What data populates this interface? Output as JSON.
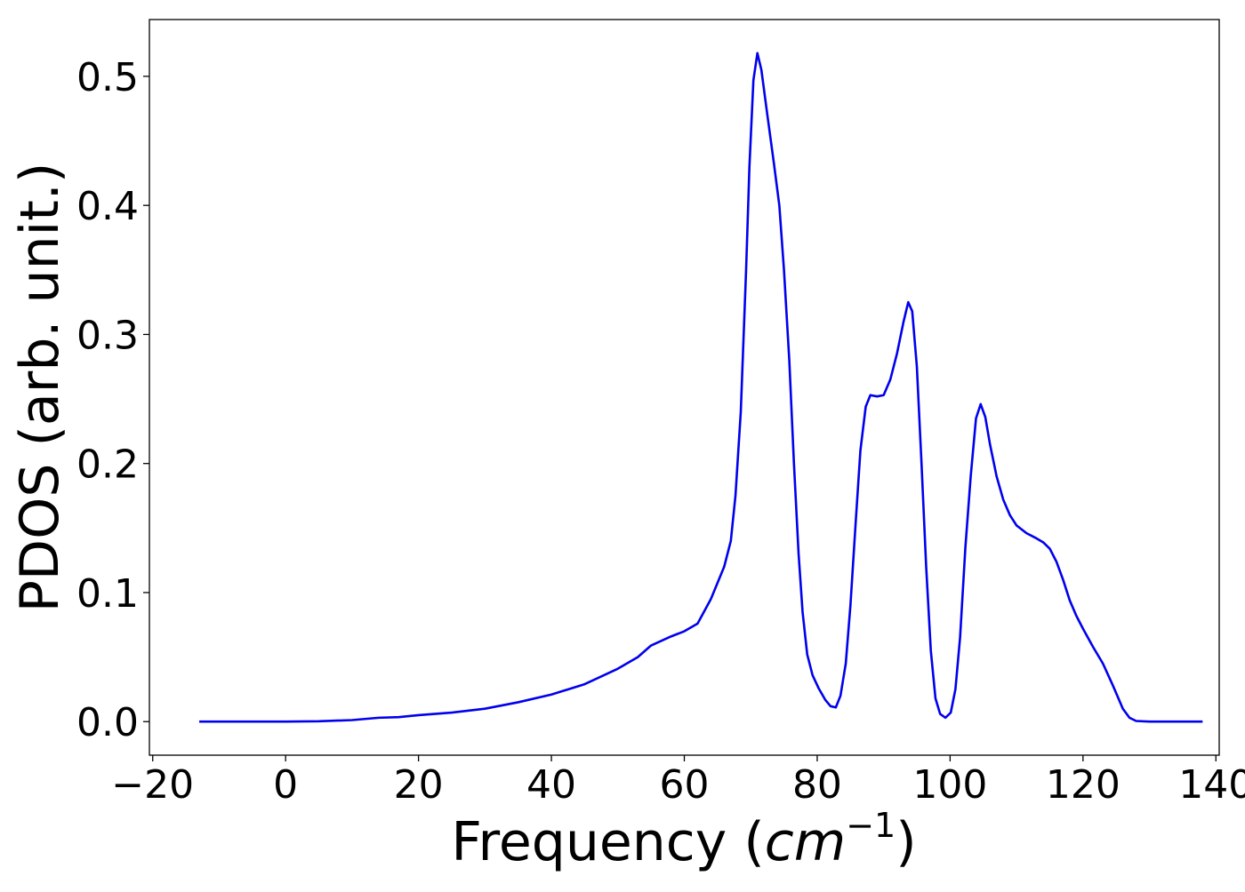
{
  "chart_data": {
    "type": "line",
    "title": "",
    "xlabel_main": "Frequency (",
    "xlabel_math": "cm",
    "xlabel_exp": "−1",
    "xlabel_close": ")",
    "ylabel": "PDOS (arb. unit.)",
    "xlim": [
      -20.5,
      140.5
    ],
    "ylim": [
      -0.026,
      0.544
    ],
    "x_ticks": [
      -20,
      0,
      20,
      40,
      60,
      80,
      100,
      120,
      140
    ],
    "x_tick_labels": [
      "−20",
      "0",
      "20",
      "40",
      "60",
      "80",
      "100",
      "120",
      "140"
    ],
    "y_ticks": [
      0.0,
      0.1,
      0.2,
      0.3,
      0.4,
      0.5
    ],
    "y_tick_labels": [
      "0.0",
      "0.1",
      "0.2",
      "0.3",
      "0.4",
      "0.5"
    ],
    "grid": false,
    "legend": "none",
    "series": [
      {
        "color": "#0000ee",
        "points": [
          [
            -13.0,
            0.0
          ],
          [
            0.0,
            0.0
          ],
          [
            5.0,
            0.0003
          ],
          [
            10.0,
            0.0012
          ],
          [
            14.0,
            0.003
          ],
          [
            17.0,
            0.0035
          ],
          [
            20.0,
            0.005
          ],
          [
            25.0,
            0.007
          ],
          [
            30.0,
            0.01
          ],
          [
            35.0,
            0.015
          ],
          [
            40.0,
            0.021
          ],
          [
            45.0,
            0.029
          ],
          [
            50.0,
            0.041
          ],
          [
            53.0,
            0.05
          ],
          [
            55.0,
            0.059
          ],
          [
            58.0,
            0.066
          ],
          [
            60.0,
            0.07
          ],
          [
            62.0,
            0.076
          ],
          [
            64.0,
            0.095
          ],
          [
            66.0,
            0.12
          ],
          [
            67.0,
            0.14
          ],
          [
            67.7,
            0.175
          ],
          [
            68.5,
            0.24
          ],
          [
            69.3,
            0.35
          ],
          [
            69.8,
            0.43
          ],
          [
            70.4,
            0.497
          ],
          [
            71.0,
            0.518
          ],
          [
            71.6,
            0.505
          ],
          [
            72.5,
            0.47
          ],
          [
            73.5,
            0.432
          ],
          [
            74.3,
            0.4
          ],
          [
            75.0,
            0.35
          ],
          [
            75.8,
            0.28
          ],
          [
            76.5,
            0.2
          ],
          [
            77.2,
            0.13
          ],
          [
            77.8,
            0.085
          ],
          [
            78.5,
            0.052
          ],
          [
            79.3,
            0.036
          ],
          [
            80.2,
            0.026
          ],
          [
            81.2,
            0.017
          ],
          [
            82.0,
            0.012
          ],
          [
            82.8,
            0.011
          ],
          [
            83.5,
            0.02
          ],
          [
            84.3,
            0.045
          ],
          [
            85.0,
            0.09
          ],
          [
            85.8,
            0.155
          ],
          [
            86.5,
            0.21
          ],
          [
            87.3,
            0.244
          ],
          [
            88.0,
            0.253
          ],
          [
            89.0,
            0.252
          ],
          [
            90.0,
            0.253
          ],
          [
            91.0,
            0.265
          ],
          [
            92.0,
            0.285
          ],
          [
            93.0,
            0.31
          ],
          [
            93.7,
            0.325
          ],
          [
            94.3,
            0.318
          ],
          [
            95.0,
            0.275
          ],
          [
            95.7,
            0.2
          ],
          [
            96.4,
            0.12
          ],
          [
            97.1,
            0.055
          ],
          [
            97.8,
            0.018
          ],
          [
            98.5,
            0.006
          ],
          [
            99.3,
            0.003
          ],
          [
            100.1,
            0.007
          ],
          [
            100.8,
            0.025
          ],
          [
            101.5,
            0.065
          ],
          [
            102.3,
            0.135
          ],
          [
            103.1,
            0.19
          ],
          [
            103.9,
            0.235
          ],
          [
            104.6,
            0.246
          ],
          [
            105.3,
            0.236
          ],
          [
            106.0,
            0.215
          ],
          [
            107.0,
            0.19
          ],
          [
            108.0,
            0.172
          ],
          [
            109.0,
            0.16
          ],
          [
            110.0,
            0.152
          ],
          [
            111.5,
            0.146
          ],
          [
            113.0,
            0.142
          ],
          [
            114.0,
            0.139
          ],
          [
            115.0,
            0.134
          ],
          [
            116.0,
            0.124
          ],
          [
            117.0,
            0.11
          ],
          [
            118.0,
            0.094
          ],
          [
            119.0,
            0.082
          ],
          [
            120.0,
            0.072
          ],
          [
            121.5,
            0.058
          ],
          [
            123.0,
            0.045
          ],
          [
            124.5,
            0.028
          ],
          [
            126.0,
            0.01
          ],
          [
            127.0,
            0.003
          ],
          [
            128.0,
            0.0005
          ],
          [
            130.0,
            0.0
          ],
          [
            138.0,
            0.0
          ]
        ]
      }
    ]
  }
}
